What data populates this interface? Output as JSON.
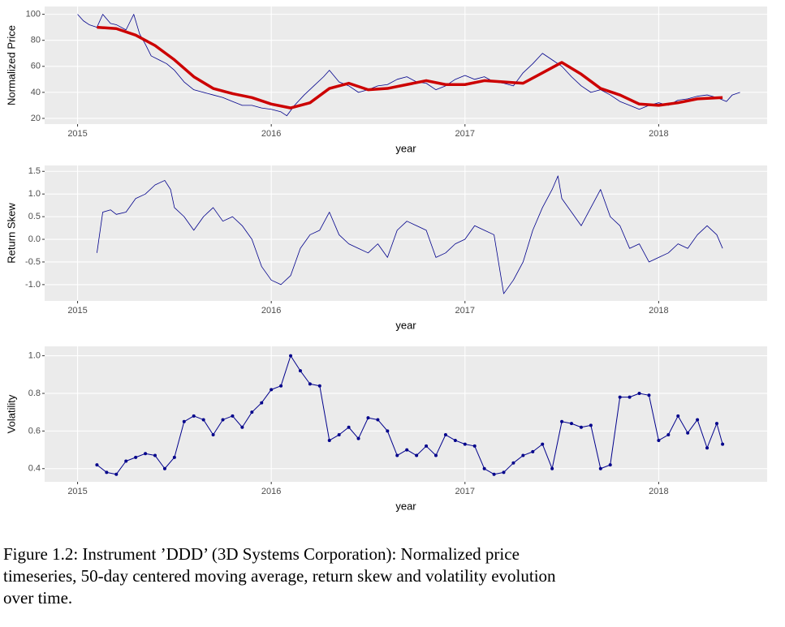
{
  "chart_data": [
    {
      "type": "line",
      "x_label": "year",
      "y_label": "Normalized Price",
      "xlim": [
        2014.83,
        2018.56
      ],
      "xticks": [
        2015,
        2016,
        2017,
        2018
      ],
      "ylim": [
        15.6,
        106
      ],
      "yticks": [
        20,
        40,
        60,
        80,
        100
      ],
      "grid": true,
      "series": [
        {
          "color": "#00008b",
          "line_width": 0.8,
          "markers": false,
          "x": [
            2015.0,
            2015.03,
            2015.06,
            2015.1,
            2015.13,
            2015.17,
            2015.2,
            2015.25,
            2015.29,
            2015.32,
            2015.35,
            2015.38,
            2015.42,
            2015.46,
            2015.5,
            2015.55,
            2015.6,
            2015.65,
            2015.7,
            2015.75,
            2015.8,
            2015.85,
            2015.9,
            2015.95,
            2016.0,
            2016.05,
            2016.08,
            2016.12,
            2016.17,
            2016.22,
            2016.27,
            2016.3,
            2016.35,
            2016.4,
            2016.45,
            2016.5,
            2016.55,
            2016.6,
            2016.65,
            2016.7,
            2016.75,
            2016.8,
            2016.85,
            2016.9,
            2016.95,
            2017.0,
            2017.05,
            2017.1,
            2017.15,
            2017.2,
            2017.25,
            2017.3,
            2017.35,
            2017.4,
            2017.45,
            2017.5,
            2017.55,
            2017.6,
            2017.65,
            2017.7,
            2017.75,
            2017.8,
            2017.85,
            2017.9,
            2017.95,
            2018.0,
            2018.05,
            2018.1,
            2018.15,
            2018.2,
            2018.25,
            2018.3,
            2018.35,
            2018.38,
            2018.42
          ],
          "values": [
            100,
            95,
            92,
            90,
            100,
            93,
            92,
            88,
            100,
            85,
            77,
            68,
            65,
            62,
            57,
            48,
            42,
            40,
            38,
            36,
            33,
            30,
            30,
            28,
            27,
            25,
            22,
            30,
            38,
            45,
            52,
            57,
            48,
            45,
            40,
            42,
            45,
            46,
            50,
            52,
            48,
            47,
            42,
            45,
            50,
            53,
            50,
            52,
            48,
            47,
            45,
            55,
            62,
            70,
            65,
            60,
            52,
            45,
            40,
            42,
            38,
            33,
            30,
            27,
            30,
            32,
            30,
            34,
            35,
            37,
            38,
            36,
            33,
            38,
            40
          ]
        },
        {
          "color": "#cc0000",
          "line_width": 3.5,
          "markers": false,
          "x": [
            2015.1,
            2015.2,
            2015.3,
            2015.4,
            2015.5,
            2015.6,
            2015.7,
            2015.8,
            2015.9,
            2016.0,
            2016.1,
            2016.2,
            2016.3,
            2016.4,
            2016.5,
            2016.6,
            2016.7,
            2016.8,
            2016.9,
            2017.0,
            2017.1,
            2017.2,
            2017.3,
            2017.4,
            2017.5,
            2017.6,
            2017.7,
            2017.8,
            2017.9,
            2018.0,
            2018.1,
            2018.2,
            2018.33
          ],
          "values": [
            90,
            89,
            84,
            76,
            65,
            52,
            43,
            39,
            36,
            31,
            28,
            32,
            43,
            47,
            42,
            43,
            46,
            49,
            46,
            46,
            49,
            48,
            47,
            55,
            63,
            54,
            43,
            38,
            31,
            30,
            32,
            35,
            36
          ]
        }
      ]
    },
    {
      "type": "line",
      "x_label": "year",
      "y_label": "Return Skew",
      "xlim": [
        2014.83,
        2018.56
      ],
      "xticks": [
        2015,
        2016,
        2017,
        2018
      ],
      "ylim": [
        -1.36,
        1.63
      ],
      "yticks": [
        {
          "value": -1,
          "label": "-1.0"
        },
        -0.5,
        {
          "value": 0,
          "label": "0.0"
        },
        0.5,
        {
          "value": 1,
          "label": "1.0"
        },
        1.5
      ],
      "grid": true,
      "series": [
        {
          "color": "#00008b",
          "line_width": 0.8,
          "markers": false,
          "x": [
            2015.1,
            2015.13,
            2015.17,
            2015.2,
            2015.25,
            2015.3,
            2015.35,
            2015.4,
            2015.45,
            2015.48,
            2015.5,
            2015.55,
            2015.6,
            2015.65,
            2015.7,
            2015.75,
            2015.8,
            2015.85,
            2015.9,
            2015.95,
            2016.0,
            2016.05,
            2016.1,
            2016.15,
            2016.2,
            2016.25,
            2016.3,
            2016.35,
            2016.4,
            2016.45,
            2016.5,
            2016.55,
            2016.6,
            2016.65,
            2016.7,
            2016.75,
            2016.8,
            2016.85,
            2016.9,
            2016.95,
            2017.0,
            2017.05,
            2017.1,
            2017.15,
            2017.2,
            2017.25,
            2017.3,
            2017.35,
            2017.4,
            2017.45,
            2017.48,
            2017.5,
            2017.55,
            2017.6,
            2017.65,
            2017.7,
            2017.75,
            2017.8,
            2017.85,
            2017.9,
            2017.95,
            2018.0,
            2018.05,
            2018.1,
            2018.15,
            2018.2,
            2018.25,
            2018.3,
            2018.33
          ],
          "values": [
            -0.3,
            0.6,
            0.65,
            0.55,
            0.6,
            0.9,
            1.0,
            1.2,
            1.3,
            1.1,
            0.7,
            0.5,
            0.2,
            0.5,
            0.7,
            0.4,
            0.5,
            0.3,
            0.0,
            -0.6,
            -0.9,
            -1.0,
            -0.8,
            -0.2,
            0.1,
            0.2,
            0.6,
            0.1,
            -0.1,
            -0.2,
            -0.3,
            -0.1,
            -0.4,
            0.2,
            0.4,
            0.3,
            0.2,
            -0.4,
            -0.3,
            -0.1,
            0.0,
            0.3,
            0.2,
            0.1,
            -1.2,
            -0.9,
            -0.5,
            0.2,
            0.7,
            1.1,
            1.4,
            0.9,
            0.6,
            0.3,
            0.7,
            1.1,
            0.5,
            0.3,
            -0.2,
            -0.1,
            -0.5,
            -0.4,
            -0.3,
            -0.1,
            -0.2,
            0.1,
            0.3,
            0.1,
            -0.2
          ]
        }
      ]
    },
    {
      "type": "line",
      "x_label": "year",
      "y_label": "Volatility",
      "xlim": [
        2014.83,
        2018.56
      ],
      "xticks": [
        2015,
        2016,
        2017,
        2018
      ],
      "ylim": [
        0.33,
        1.05
      ],
      "yticks": [
        0.4,
        0.6,
        0.8,
        {
          "value": 1,
          "label": "1.0"
        }
      ],
      "grid": true,
      "series": [
        {
          "color": "#00008b",
          "line_width": 1,
          "markers": true,
          "x": [
            2015.1,
            2015.15,
            2015.2,
            2015.25,
            2015.3,
            2015.35,
            2015.4,
            2015.45,
            2015.5,
            2015.55,
            2015.6,
            2015.65,
            2015.7,
            2015.75,
            2015.8,
            2015.85,
            2015.9,
            2015.95,
            2016.0,
            2016.05,
            2016.1,
            2016.15,
            2016.2,
            2016.25,
            2016.3,
            2016.35,
            2016.4,
            2016.45,
            2016.5,
            2016.55,
            2016.6,
            2016.65,
            2016.7,
            2016.75,
            2016.8,
            2016.85,
            2016.9,
            2016.95,
            2017.0,
            2017.05,
            2017.1,
            2017.15,
            2017.2,
            2017.25,
            2017.3,
            2017.35,
            2017.4,
            2017.45,
            2017.5,
            2017.55,
            2017.6,
            2017.65,
            2017.7,
            2017.75,
            2017.8,
            2017.85,
            2017.9,
            2017.95,
            2018.0,
            2018.05,
            2018.1,
            2018.15,
            2018.2,
            2018.25,
            2018.3,
            2018.33
          ],
          "values": [
            0.42,
            0.38,
            0.37,
            0.44,
            0.46,
            0.48,
            0.47,
            0.4,
            0.46,
            0.65,
            0.68,
            0.66,
            0.58,
            0.66,
            0.68,
            0.62,
            0.7,
            0.75,
            0.82,
            0.84,
            1.0,
            0.92,
            0.85,
            0.84,
            0.55,
            0.58,
            0.62,
            0.56,
            0.67,
            0.66,
            0.6,
            0.47,
            0.5,
            0.47,
            0.52,
            0.47,
            0.58,
            0.55,
            0.53,
            0.52,
            0.4,
            0.37,
            0.38,
            0.43,
            0.47,
            0.49,
            0.53,
            0.4,
            0.65,
            0.64,
            0.62,
            0.63,
            0.4,
            0.42,
            0.78,
            0.78,
            0.8,
            0.79,
            0.55,
            0.58,
            0.68,
            0.59,
            0.66,
            0.51,
            0.64,
            0.53
          ]
        }
      ]
    }
  ],
  "caption": [
    "Figure 1.2: Instrument ’DDD’ (3D Systems Corporation): Normalized price",
    "timeseries, 50-day centered moving average, return skew and volatility evolution",
    "over time."
  ]
}
